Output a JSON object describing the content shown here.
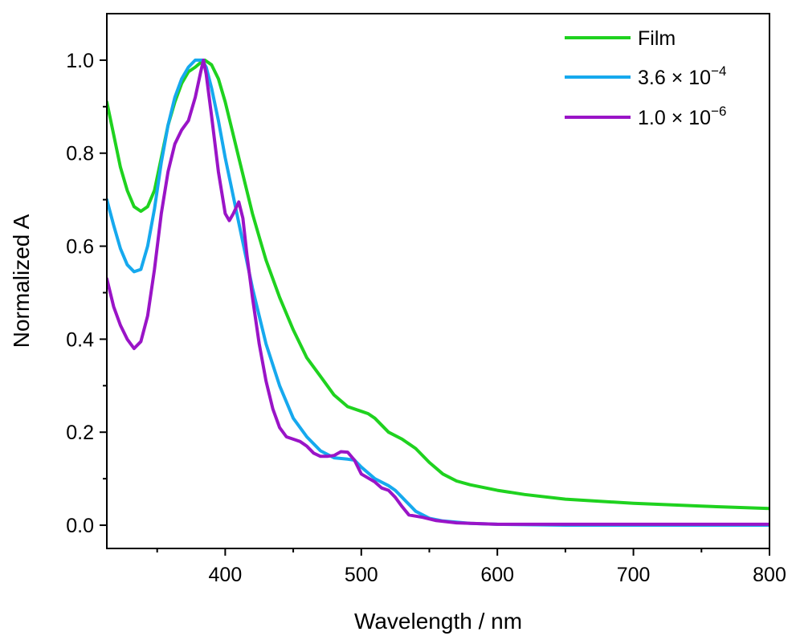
{
  "chart_data": {
    "type": "line",
    "title": "",
    "xlabel": "Wavelength / nm",
    "ylabel": "Normalized A",
    "xlim": [
      313,
      800
    ],
    "ylim": [
      -0.05,
      1.1
    ],
    "x_ticks": [
      400,
      500,
      600,
      700,
      800
    ],
    "x_tick_labels": [
      "400",
      "500",
      "600",
      "700",
      "800"
    ],
    "x_minor_ticks": [
      350,
      450,
      550,
      650,
      750
    ],
    "y_ticks": [
      0.0,
      0.2,
      0.4,
      0.6,
      0.8,
      1.0
    ],
    "y_tick_labels": [
      "0.0",
      "0.2",
      "0.4",
      "0.6",
      "0.8",
      "1.0"
    ],
    "y_minor_ticks": [
      0.1,
      0.3,
      0.5,
      0.7,
      0.9
    ],
    "grid": false,
    "legend_position": "top-right",
    "series": [
      {
        "name": "Film",
        "color": "#1fd21f",
        "points": [
          [
            313,
            0.91
          ],
          [
            318,
            0.84
          ],
          [
            323,
            0.77
          ],
          [
            328,
            0.72
          ],
          [
            333,
            0.685
          ],
          [
            338,
            0.675
          ],
          [
            343,
            0.685
          ],
          [
            348,
            0.72
          ],
          [
            353,
            0.79
          ],
          [
            358,
            0.86
          ],
          [
            363,
            0.91
          ],
          [
            368,
            0.95
          ],
          [
            373,
            0.975
          ],
          [
            378,
            0.985
          ],
          [
            382,
            0.995
          ],
          [
            385,
            1.0
          ],
          [
            390,
            0.99
          ],
          [
            395,
            0.96
          ],
          [
            400,
            0.91
          ],
          [
            405,
            0.85
          ],
          [
            410,
            0.79
          ],
          [
            415,
            0.73
          ],
          [
            420,
            0.67
          ],
          [
            425,
            0.62
          ],
          [
            430,
            0.57
          ],
          [
            440,
            0.49
          ],
          [
            450,
            0.42
          ],
          [
            460,
            0.36
          ],
          [
            470,
            0.32
          ],
          [
            480,
            0.28
          ],
          [
            490,
            0.255
          ],
          [
            500,
            0.245
          ],
          [
            505,
            0.24
          ],
          [
            510,
            0.23
          ],
          [
            520,
            0.2
          ],
          [
            530,
            0.185
          ],
          [
            540,
            0.165
          ],
          [
            550,
            0.135
          ],
          [
            560,
            0.11
          ],
          [
            570,
            0.095
          ],
          [
            580,
            0.087
          ],
          [
            600,
            0.075
          ],
          [
            620,
            0.066
          ],
          [
            650,
            0.056
          ],
          [
            700,
            0.047
          ],
          [
            750,
            0.041
          ],
          [
            800,
            0.036
          ]
        ]
      },
      {
        "name": "3.6 × 10⁻⁴",
        "color": "#16a9ee",
        "points": [
          [
            313,
            0.7
          ],
          [
            318,
            0.645
          ],
          [
            323,
            0.595
          ],
          [
            328,
            0.56
          ],
          [
            333,
            0.545
          ],
          [
            338,
            0.55
          ],
          [
            343,
            0.6
          ],
          [
            348,
            0.68
          ],
          [
            353,
            0.78
          ],
          [
            358,
            0.86
          ],
          [
            363,
            0.92
          ],
          [
            368,
            0.96
          ],
          [
            373,
            0.985
          ],
          [
            378,
            1.0
          ],
          [
            383,
            1.0
          ],
          [
            386,
            0.985
          ],
          [
            390,
            0.94
          ],
          [
            395,
            0.87
          ],
          [
            400,
            0.79
          ],
          [
            405,
            0.72
          ],
          [
            410,
            0.65
          ],
          [
            415,
            0.58
          ],
          [
            420,
            0.51
          ],
          [
            425,
            0.45
          ],
          [
            430,
            0.39
          ],
          [
            440,
            0.3
          ],
          [
            450,
            0.23
          ],
          [
            460,
            0.19
          ],
          [
            470,
            0.16
          ],
          [
            480,
            0.145
          ],
          [
            490,
            0.142
          ],
          [
            495,
            0.14
          ],
          [
            500,
            0.125
          ],
          [
            510,
            0.1
          ],
          [
            520,
            0.085
          ],
          [
            525,
            0.075
          ],
          [
            530,
            0.06
          ],
          [
            540,
            0.03
          ],
          [
            550,
            0.015
          ],
          [
            560,
            0.009
          ],
          [
            580,
            0.004
          ],
          [
            600,
            0.002
          ],
          [
            650,
            0.0
          ],
          [
            700,
            0.0
          ],
          [
            800,
            0.0
          ]
        ]
      },
      {
        "name": "1.0 × 10⁻⁶",
        "color": "#9a14c7",
        "points": [
          [
            313,
            0.53
          ],
          [
            318,
            0.47
          ],
          [
            323,
            0.43
          ],
          [
            328,
            0.4
          ],
          [
            333,
            0.38
          ],
          [
            338,
            0.395
          ],
          [
            343,
            0.45
          ],
          [
            348,
            0.55
          ],
          [
            353,
            0.67
          ],
          [
            358,
            0.76
          ],
          [
            363,
            0.82
          ],
          [
            368,
            0.85
          ],
          [
            373,
            0.87
          ],
          [
            378,
            0.92
          ],
          [
            382,
            0.975
          ],
          [
            384,
            1.0
          ],
          [
            386,
            0.97
          ],
          [
            390,
            0.88
          ],
          [
            395,
            0.76
          ],
          [
            400,
            0.67
          ],
          [
            403,
            0.655
          ],
          [
            406,
            0.67
          ],
          [
            410,
            0.695
          ],
          [
            413,
            0.66
          ],
          [
            416,
            0.58
          ],
          [
            420,
            0.49
          ],
          [
            425,
            0.39
          ],
          [
            430,
            0.31
          ],
          [
            435,
            0.25
          ],
          [
            440,
            0.21
          ],
          [
            445,
            0.19
          ],
          [
            450,
            0.185
          ],
          [
            455,
            0.18
          ],
          [
            460,
            0.17
          ],
          [
            465,
            0.155
          ],
          [
            470,
            0.148
          ],
          [
            475,
            0.148
          ],
          [
            480,
            0.15
          ],
          [
            485,
            0.158
          ],
          [
            490,
            0.157
          ],
          [
            495,
            0.14
          ],
          [
            500,
            0.11
          ],
          [
            510,
            0.093
          ],
          [
            515,
            0.08
          ],
          [
            520,
            0.075
          ],
          [
            525,
            0.06
          ],
          [
            530,
            0.04
          ],
          [
            535,
            0.022
          ],
          [
            545,
            0.017
          ],
          [
            555,
            0.01
          ],
          [
            570,
            0.005
          ],
          [
            600,
            0.002
          ],
          [
            650,
            0.002
          ],
          [
            700,
            0.002
          ],
          [
            800,
            0.002
          ]
        ]
      }
    ],
    "legend": [
      {
        "label_main": "Film",
        "label_sup": ""
      },
      {
        "label_main": "3.6 × 10",
        "label_sup": "−4"
      },
      {
        "label_main": "1.0 × 10",
        "label_sup": "−6"
      }
    ]
  }
}
